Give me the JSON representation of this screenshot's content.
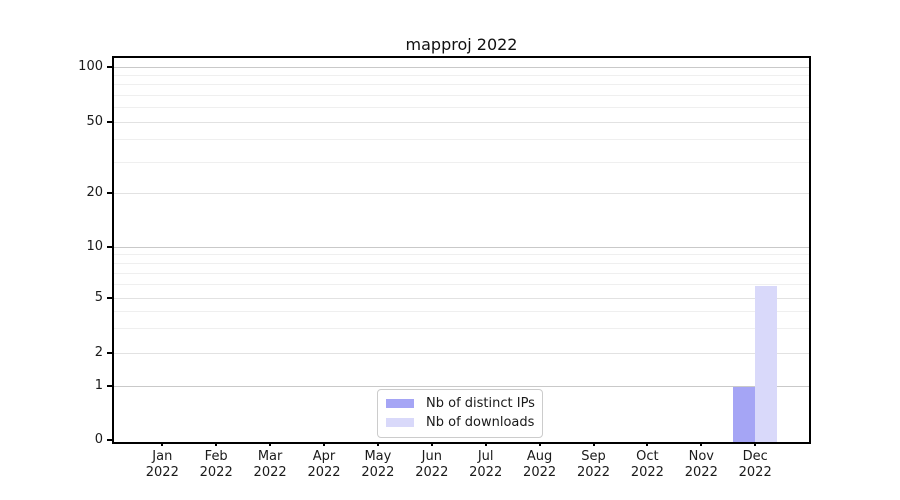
{
  "title": "mapproj 2022",
  "legend": {
    "items": [
      {
        "label": "Nb of distinct IPs",
        "color": "#a5a5f5"
      },
      {
        "label": "Nb of downloads",
        "color": "#d9d9fa"
      }
    ]
  },
  "chart_data": {
    "type": "bar",
    "title": "mapproj 2022",
    "categories": [
      "Jan 2022",
      "Feb 2022",
      "Mar 2022",
      "Apr 2022",
      "May 2022",
      "Jun 2022",
      "Jul 2022",
      "Aug 2022",
      "Sep 2022",
      "Oct 2022",
      "Nov 2022",
      "Dec 2022"
    ],
    "x_tick_months": [
      "Jan",
      "Feb",
      "Mar",
      "Apr",
      "May",
      "Jun",
      "Jul",
      "Aug",
      "Sep",
      "Oct",
      "Nov",
      "Dec"
    ],
    "x_tick_year": "2022",
    "series": [
      {
        "name": "Nb of distinct IPs",
        "color": "#a5a5f5",
        "values": [
          0,
          0,
          0,
          0,
          0,
          0,
          0,
          0,
          0,
          0,
          0,
          1
        ]
      },
      {
        "name": "Nb of downloads",
        "color": "#d9d9fa",
        "values": [
          0,
          0,
          0,
          0,
          0,
          0,
          0,
          0,
          0,
          0,
          0,
          6
        ]
      }
    ],
    "xlabel": "",
    "ylabel": "",
    "yscale": "symlog",
    "ylim": [
      0,
      120
    ],
    "y_major_ticks": [
      0,
      1,
      2,
      5,
      10,
      20,
      50,
      100
    ],
    "y_minor_ticks": [
      3,
      4,
      6,
      7,
      8,
      9,
      30,
      40,
      60,
      70,
      80,
      90
    ],
    "grid": true,
    "legend_position": "lower center (inside axes)"
  },
  "colors": {
    "bar_distinct_ips": "#a5a5f5",
    "bar_downloads": "#d9d9fa",
    "grid_power10": "#c9c9c9",
    "grid_major": "#e2e2e2",
    "grid_minor": "#efefef",
    "spine": "#000000",
    "text": "#1a1a1a",
    "legend_border": "#cccccc",
    "background": "#ffffff"
  }
}
